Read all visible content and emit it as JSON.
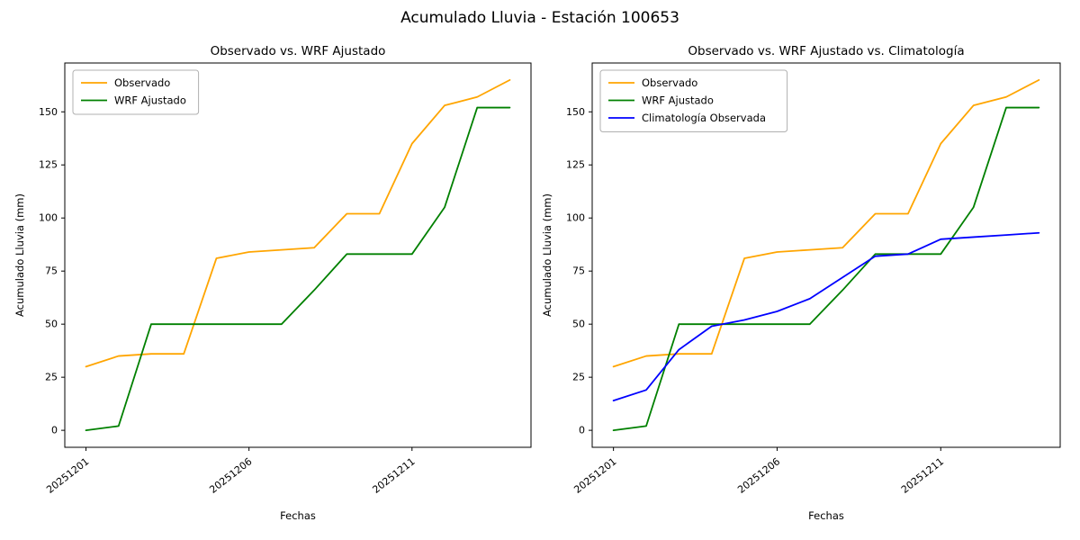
{
  "figure_title": "Acumulado Lluvia - Estación 100653",
  "chart_data": [
    {
      "type": "line",
      "title": "Observado vs. WRF Ajustado",
      "xlabel": "Fechas",
      "ylabel": "Acumulado Lluvia (mm)",
      "x_categories": [
        "20251201",
        "20251202",
        "20251203",
        "20251204",
        "20251205",
        "20251206",
        "20251207",
        "20251208",
        "20251209",
        "20251210",
        "20251211",
        "20251212",
        "20251213",
        "20251214"
      ],
      "xticks": [
        {
          "position": 0,
          "label": "20251201"
        },
        {
          "position": 5,
          "label": "20251206"
        },
        {
          "position": 10,
          "label": "20251211"
        }
      ],
      "yticks": [
        0,
        25,
        50,
        75,
        100,
        125,
        150
      ],
      "ylim": [
        -8,
        173
      ],
      "grid": false,
      "legend_position": "upper-left",
      "series": [
        {
          "key": "observado",
          "name": "Observado",
          "color": "#ffa500",
          "values": [
            30,
            35,
            36,
            36,
            81,
            84,
            85,
            86,
            102,
            102,
            135,
            153,
            157,
            165
          ]
        },
        {
          "key": "wrf-ajustado",
          "name": "WRF Ajustado",
          "color": "#008000",
          "values": [
            0,
            2,
            50,
            50,
            50,
            50,
            50,
            66,
            83,
            83,
            83,
            105,
            152,
            152
          ]
        }
      ]
    },
    {
      "type": "line",
      "title": "Observado vs. WRF Ajustado vs. Climatología",
      "xlabel": "Fechas",
      "ylabel": "Acumulado Lluvia (mm)",
      "x_categories": [
        "20251201",
        "20251202",
        "20251203",
        "20251204",
        "20251205",
        "20251206",
        "20251207",
        "20251208",
        "20251209",
        "20251210",
        "20251211",
        "20251212",
        "20251213",
        "20251214"
      ],
      "xticks": [
        {
          "position": 0,
          "label": "20251201"
        },
        {
          "position": 5,
          "label": "20251206"
        },
        {
          "position": 10,
          "label": "20251211"
        }
      ],
      "yticks": [
        0,
        25,
        50,
        75,
        100,
        125,
        150
      ],
      "ylim": [
        -8,
        173
      ],
      "grid": false,
      "legend_position": "upper-left",
      "series": [
        {
          "key": "observado",
          "name": "Observado",
          "color": "#ffa500",
          "values": [
            30,
            35,
            36,
            36,
            81,
            84,
            85,
            86,
            102,
            102,
            135,
            153,
            157,
            165
          ]
        },
        {
          "key": "wrf-ajustado",
          "name": "WRF Ajustado",
          "color": "#008000",
          "values": [
            0,
            2,
            50,
            50,
            50,
            50,
            50,
            66,
            83,
            83,
            83,
            105,
            152,
            152
          ]
        },
        {
          "key": "climatologia-observada",
          "name": "Climatología Observada",
          "color": "#0000ff",
          "values": [
            14,
            19,
            38,
            49,
            52,
            56,
            62,
            72,
            82,
            83,
            90,
            91,
            92,
            93
          ]
        }
      ]
    }
  ]
}
